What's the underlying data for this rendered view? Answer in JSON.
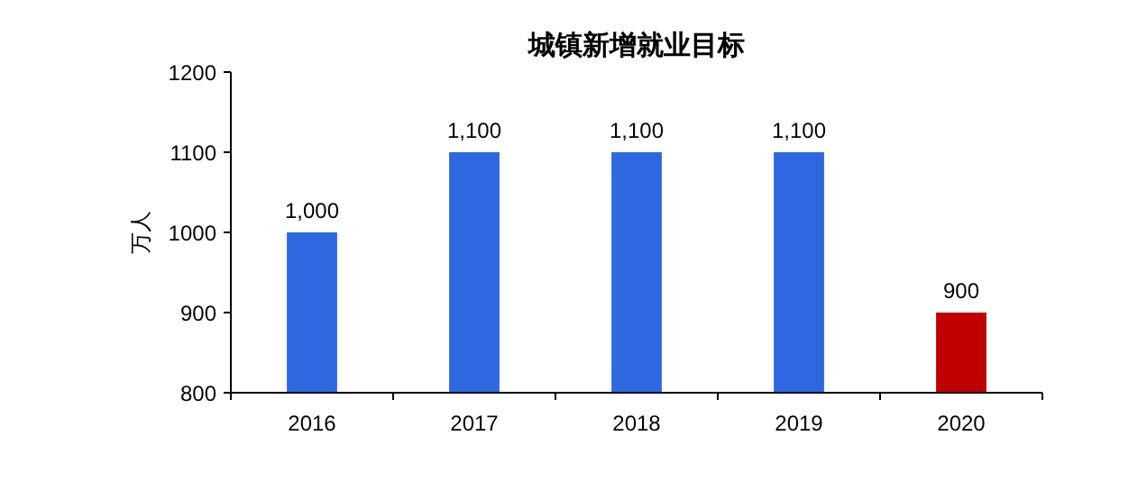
{
  "chart_data": {
    "type": "bar",
    "title": "城镇新增就业目标",
    "ylabel": "万人",
    "categories": [
      "2016",
      "2017",
      "2018",
      "2019",
      "2020"
    ],
    "values": [
      1000,
      1100,
      1100,
      1100,
      900
    ],
    "colors": [
      "#2e68e0",
      "#2e68e0",
      "#2e68e0",
      "#2e68e0",
      "#c00000"
    ],
    "value_labels": [
      "1,000",
      "1,100",
      "1,100",
      "1,100",
      "900"
    ],
    "ylim": [
      800,
      1200
    ],
    "yticks": [
      800,
      900,
      1000,
      1100,
      1200
    ]
  }
}
